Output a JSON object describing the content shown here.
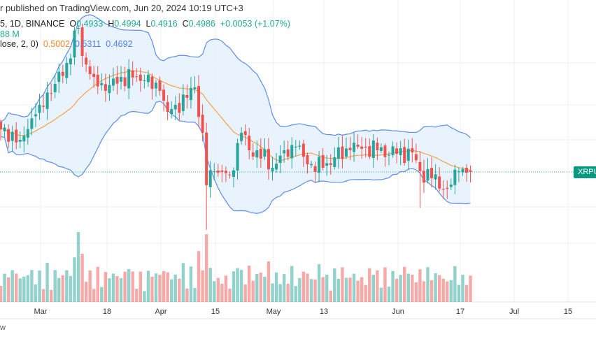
{
  "header": {
    "published": "r published on TradingView.com, Jun 20, 2024 10:19 UTC+3"
  },
  "legend": {
    "symbol": "5, 1D, BINANCE",
    "open_label": "O",
    "open": "0.4933",
    "high_label": "H",
    "high": "0.4994",
    "low_label": "L",
    "low": "0.4916",
    "close_label": "C",
    "close": "0.4986",
    "change": "+0.0053 (+1.07%)",
    "volume": "88 M",
    "bb_label": "lose, 2, 0)",
    "bb_basis": "0.5002",
    "bb_upper": "0.5311",
    "bb_lower": "0.4692"
  },
  "price_badge": "XRPUS",
  "footer": "w",
  "colors": {
    "up": "#26a69a",
    "down": "#ef5350",
    "band": "#5b8def",
    "basis": "#f7a04b",
    "fill": "#e4f0fc"
  },
  "chart_data": {
    "type": "candlestick",
    "interval": "1D",
    "last_price": 0.4986,
    "x_ticks": [
      "Mar",
      "18",
      "Apr",
      "15",
      "May",
      "13",
      "Jun",
      "17",
      "Jul",
      "15"
    ],
    "close_keyframes": [
      [
        "2024-02-20",
        0.5566
      ],
      [
        "2024-02-25",
        0.5423
      ],
      [
        "2024-03-01",
        0.5898
      ],
      [
        "2024-03-05",
        0.6183
      ],
      [
        "2024-03-08",
        0.6468
      ],
      [
        "2024-03-11",
        0.6943
      ],
      [
        "2024-03-12",
        0.6563
      ],
      [
        "2024-03-15",
        0.6278
      ],
      [
        "2024-03-18",
        0.6088
      ],
      [
        "2024-03-22",
        0.6278
      ],
      [
        "2024-03-26",
        0.6278
      ],
      [
        "2024-03-28",
        0.6231
      ],
      [
        "2024-04-01",
        0.6088
      ],
      [
        "2024-04-03",
        0.5803
      ],
      [
        "2024-04-05",
        0.5898
      ],
      [
        "2024-04-08",
        0.5993
      ],
      [
        "2024-04-10",
        0.6136
      ],
      [
        "2024-04-12",
        0.5518
      ],
      [
        "2024-04-13",
        0.4806
      ],
      [
        "2024-04-15",
        0.4996
      ],
      [
        "2024-04-19",
        0.4948
      ],
      [
        "2024-04-22",
        0.5518
      ],
      [
        "2024-04-24",
        0.5281
      ],
      [
        "2024-04-26",
        0.5281
      ],
      [
        "2024-04-30",
        0.5043
      ],
      [
        "2024-05-03",
        0.5281
      ],
      [
        "2024-05-06",
        0.5328
      ],
      [
        "2024-05-09",
        0.5091
      ],
      [
        "2024-05-13",
        0.5043
      ],
      [
        "2024-05-16",
        0.5186
      ],
      [
        "2024-05-20",
        0.5281
      ],
      [
        "2024-05-22",
        0.5328
      ],
      [
        "2024-05-27",
        0.5281
      ],
      [
        "2024-06-01",
        0.5233
      ],
      [
        "2024-06-05",
        0.5252
      ],
      [
        "2024-06-07",
        0.4996
      ],
      [
        "2024-06-10",
        0.4901
      ],
      [
        "2024-06-14",
        0.4758
      ],
      [
        "2024-06-17",
        0.4996
      ],
      [
        "2024-06-20",
        0.4986
      ]
    ],
    "indicators": [
      "Volume",
      "Bollinger Bands (20, 2)"
    ]
  }
}
